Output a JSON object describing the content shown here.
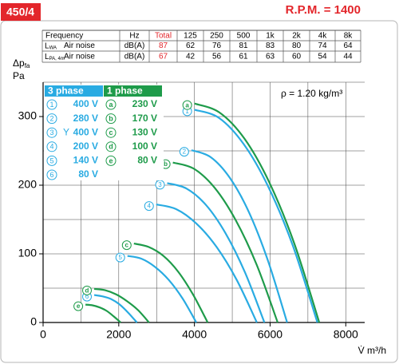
{
  "header": {
    "title": "450/4",
    "rpm": "R.P.M. = 1400"
  },
  "table": {
    "header": [
      "Frequency",
      "Hz",
      "Total",
      "125",
      "250",
      "500",
      "1k",
      "2k",
      "4k",
      "8k"
    ],
    "rows": [
      [
        {
          "main": "L",
          "sub": "WA"
        },
        "Air noise",
        "dB(A)",
        87,
        62,
        76,
        81,
        83,
        80,
        74,
        64
      ],
      [
        {
          "main": "L",
          "sub": "PA, 4m"
        },
        "Air noise",
        "dB(A)",
        67,
        42,
        56,
        61,
        63,
        60,
        54,
        44
      ]
    ]
  },
  "chart_data": {
    "type": "line",
    "y_label": {
      "main": "Δp",
      "sub": "fa"
    },
    "y_unit": "Pa",
    "x_label": "V̇ m³/h",
    "annotation": "ρ = 1.20 kg/m³",
    "xlim": [
      0,
      8500
    ],
    "ylim": [
      0,
      350
    ],
    "xticks": [
      0,
      2000,
      4000,
      6000,
      8000
    ],
    "yticks": [
      0,
      100,
      200,
      300
    ],
    "xminor": [
      1000,
      3000,
      5000,
      7000
    ],
    "yminor": [
      50,
      150,
      250,
      350
    ],
    "grid": true,
    "groups": [
      {
        "title": "3 phase",
        "color": "#29abe2"
      },
      {
        "title": "1 phase",
        "color": "#1e9b4a"
      }
    ],
    "series": [
      {
        "name": "1",
        "voltage": "400 V",
        "group": 0,
        "color": "#29abe2",
        "x": [
          4000,
          4650,
          5300,
          5950,
          6600,
          7250
        ],
        "values": [
          310,
          298,
          260,
          198,
          112,
          0
        ]
      },
      {
        "name": "2",
        "voltage": "280 V",
        "group": 0,
        "color": "#29abe2",
        "x": [
          3920,
          4426,
          4932,
          5438,
          5944,
          6450
        ],
        "values": [
          251,
          241,
          211,
          161,
          90,
          0
        ]
      },
      {
        "name": "3",
        "connection": "Y",
        "voltage": "400 V",
        "group": 0,
        "color": "#29abe2",
        "x": [
          3280,
          3794,
          4308,
          4822,
          5336,
          5850
        ],
        "values": [
          203,
          195,
          171,
          130,
          73,
          0
        ]
      },
      {
        "name": "4",
        "voltage": "200 V",
        "group": 0,
        "color": "#29abe2",
        "x": [
          2990,
          3522,
          4054,
          4586,
          5118,
          5650
        ],
        "values": [
          172,
          165,
          144,
          110,
          62,
          0
        ]
      },
      {
        "name": "5",
        "voltage": "140 V",
        "group": 0,
        "color": "#29abe2",
        "x": [
          2230,
          2594,
          2958,
          3322,
          3686,
          4050
        ],
        "values": [
          97,
          93,
          81,
          62,
          35,
          0
        ]
      },
      {
        "name": "6",
        "voltage": "80 V",
        "group": 0,
        "color": "#29abe2",
        "x": [
          1350,
          1576,
          1802,
          2028,
          2254,
          2480
        ],
        "values": [
          40,
          38,
          34,
          26,
          14,
          0
        ]
      },
      {
        "name": "a",
        "voltage": "230 V",
        "group": 1,
        "color": "#1e9b4a",
        "x": [
          4000,
          4660,
          5320,
          5980,
          6640,
          7300
        ],
        "values": [
          319,
          306,
          268,
          204,
          115,
          0
        ]
      },
      {
        "name": "b",
        "voltage": "170 V",
        "group": 1,
        "color": "#1e9b4a",
        "x": [
          3430,
          3984,
          4538,
          5092,
          5646,
          6200
        ],
        "values": [
          233,
          224,
          196,
          149,
          84,
          0
        ]
      },
      {
        "name": "c",
        "voltage": "130 V",
        "group": 1,
        "color": "#1e9b4a",
        "x": [
          2400,
          2790,
          3180,
          3570,
          3960,
          4350
        ],
        "values": [
          115,
          110,
          97,
          74,
          41,
          0
        ]
      },
      {
        "name": "d",
        "voltage": "100 V",
        "group": 1,
        "color": "#1e9b4a",
        "x": [
          1350,
          1640,
          1930,
          2220,
          2510,
          2800
        ],
        "values": [
          49,
          47,
          41,
          31,
          18,
          0
        ]
      },
      {
        "name": "e",
        "voltage": "80 V",
        "group": 1,
        "color": "#1e9b4a",
        "x": [
          1120,
          1306,
          1492,
          1678,
          1864,
          2050
        ],
        "values": [
          26,
          25,
          22,
          17,
          9,
          0
        ]
      }
    ]
  }
}
